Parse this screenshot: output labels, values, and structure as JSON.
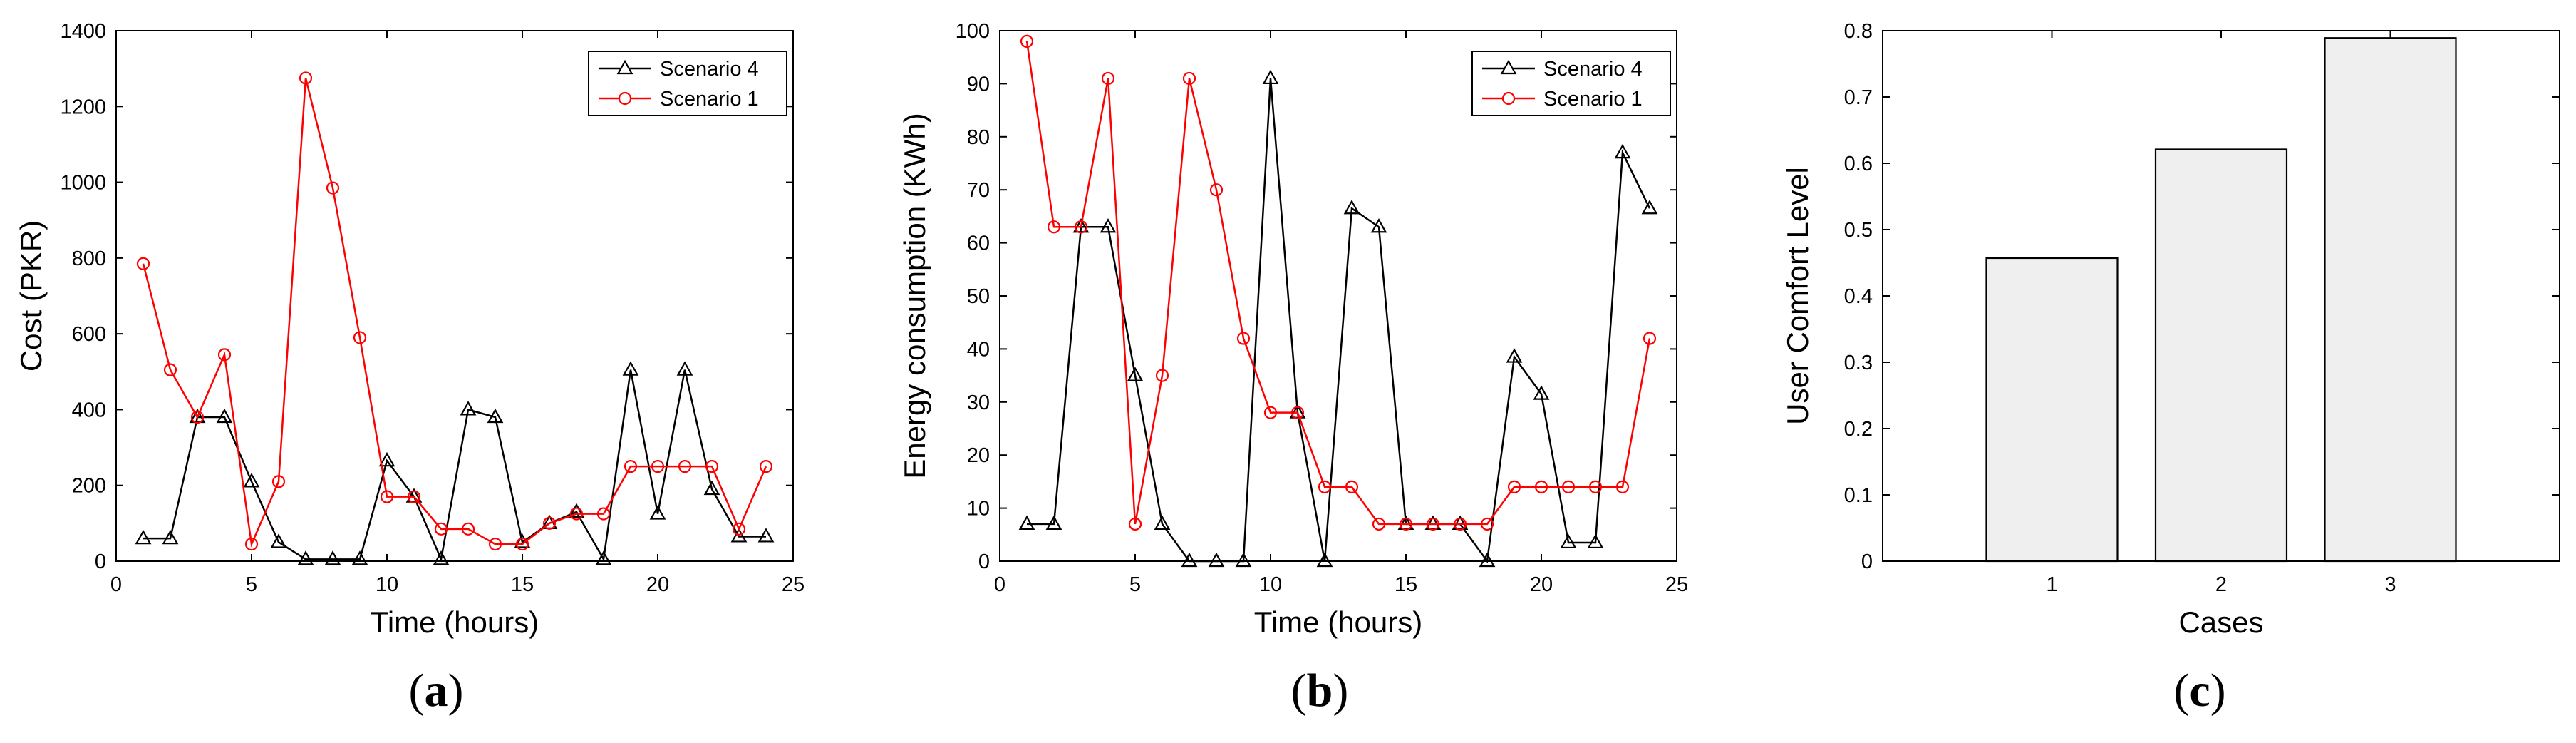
{
  "chart_data": [
    {
      "type": "line",
      "caption": {
        "open": "(",
        "letter": "a",
        "close": ")"
      },
      "xlabel": "Time (hours)",
      "ylabel": "Cost (PKR)",
      "xlim": [
        0,
        25
      ],
      "ylim": [
        0,
        1400
      ],
      "xticks": [
        "0",
        "5",
        "10",
        "15",
        "20",
        "25"
      ],
      "yticks": [
        "0",
        "200",
        "400",
        "600",
        "800",
        "1000",
        "1200",
        "1400"
      ],
      "grid": false,
      "legend": "top-right",
      "x": [
        1,
        2,
        3,
        4,
        5,
        6,
        7,
        8,
        9,
        10,
        11,
        12,
        13,
        14,
        15,
        16,
        17,
        18,
        19,
        20,
        21,
        22,
        23,
        24
      ],
      "series": [
        {
          "name": "Scenario 4",
          "color": "#000000",
          "marker": "triangle",
          "values": [
            60,
            60,
            380,
            380,
            210,
            50,
            5,
            5,
            5,
            265,
            170,
            5,
            400,
            380,
            50,
            100,
            130,
            5,
            505,
            125,
            505,
            190,
            65,
            65
          ]
        },
        {
          "name": "Scenario 1",
          "color": "#ff0000",
          "marker": "circle",
          "values": [
            785,
            505,
            380,
            545,
            45,
            210,
            1275,
            985,
            590,
            170,
            170,
            85,
            85,
            45,
            45,
            100,
            125,
            125,
            250,
            250,
            250,
            250,
            85,
            250
          ]
        }
      ]
    },
    {
      "type": "line",
      "caption": {
        "open": "(",
        "letter": "b",
        "close": ")"
      },
      "xlabel": "Time (hours)",
      "ylabel": "Energy consumption (KWh)",
      "xlim": [
        0,
        25
      ],
      "ylim": [
        0,
        100
      ],
      "xticks": [
        "0",
        "5",
        "10",
        "15",
        "20",
        "25"
      ],
      "yticks": [
        "0",
        "10",
        "20",
        "30",
        "40",
        "50",
        "60",
        "70",
        "80",
        "90",
        "100"
      ],
      "grid": false,
      "legend": "top-right",
      "x": [
        1,
        2,
        3,
        4,
        5,
        6,
        7,
        8,
        9,
        10,
        11,
        12,
        13,
        14,
        15,
        16,
        17,
        18,
        19,
        20,
        21,
        22,
        23,
        24
      ],
      "series": [
        {
          "name": "Scenario 4",
          "color": "#000000",
          "marker": "triangle",
          "values": [
            7,
            7,
            63,
            63,
            35,
            7,
            0,
            0,
            0,
            91,
            28,
            0,
            66.5,
            63,
            7,
            7,
            7,
            0,
            38.5,
            31.5,
            3.5,
            3.5,
            77,
            66.5
          ]
        },
        {
          "name": "Scenario 1",
          "color": "#ff0000",
          "marker": "circle",
          "values": [
            98,
            63,
            63,
            91,
            7,
            35,
            91,
            70,
            42,
            28,
            28,
            14,
            14,
            7,
            7,
            7,
            7,
            7,
            14,
            14,
            14,
            14,
            14,
            42
          ]
        }
      ]
    },
    {
      "type": "bar",
      "caption": {
        "open": "(",
        "letter": "c",
        "close": ")"
      },
      "xlabel": "Cases",
      "ylabel": "User Comfort Level",
      "ylim": [
        0,
        0.8
      ],
      "yticks": [
        "0",
        "0.1",
        "0.2",
        "0.3",
        "0.4",
        "0.5",
        "0.6",
        "0.7",
        "0.8"
      ],
      "categories": [
        "1",
        "2",
        "3"
      ],
      "values": [
        0.457,
        0.621,
        0.789
      ],
      "bar_color": "#efefef",
      "grid": false
    }
  ]
}
